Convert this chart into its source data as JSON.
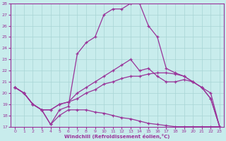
{
  "xlabel": "Windchill (Refroidissement éolien,°C)",
  "xlim": [
    -0.5,
    23.5
  ],
  "ylim": [
    17,
    28
  ],
  "xticks": [
    0,
    1,
    2,
    3,
    4,
    5,
    6,
    7,
    8,
    9,
    10,
    11,
    12,
    13,
    14,
    15,
    16,
    17,
    18,
    19,
    20,
    21,
    22,
    23
  ],
  "yticks": [
    17,
    18,
    19,
    20,
    21,
    22,
    23,
    24,
    25,
    26,
    27,
    28
  ],
  "background_color": "#c8ecec",
  "grid_color": "#a8d4d4",
  "line_color": "#993399",
  "curves": [
    {
      "x": [
        0,
        1,
        2,
        3,
        4,
        5,
        6,
        7,
        8,
        9,
        10,
        11,
        12,
        13,
        14,
        15,
        16,
        17,
        18,
        19,
        20,
        21,
        22,
        23
      ],
      "y": [
        20.5,
        20.0,
        19.0,
        18.5,
        17.2,
        18.5,
        18.8,
        23.5,
        24.5,
        25.0,
        27.0,
        27.5,
        27.5,
        28.0,
        28.0,
        26.0,
        25.0,
        22.2,
        21.8,
        21.5,
        21.0,
        20.5,
        20.0,
        17.0
      ]
    },
    {
      "x": [
        0,
        1,
        2,
        3,
        4,
        5,
        6,
        7,
        8,
        9,
        10,
        11,
        12,
        13,
        14,
        15,
        16,
        17,
        18,
        19,
        20,
        21,
        22,
        23
      ],
      "y": [
        20.5,
        20.0,
        19.0,
        18.5,
        18.5,
        19.0,
        19.2,
        20.0,
        20.5,
        21.0,
        21.5,
        22.0,
        22.5,
        23.0,
        22.0,
        22.2,
        21.5,
        21.0,
        21.0,
        21.2,
        21.0,
        20.5,
        19.5,
        17.0
      ]
    },
    {
      "x": [
        0,
        1,
        2,
        3,
        4,
        5,
        6,
        7,
        8,
        9,
        10,
        11,
        12,
        13,
        14,
        15,
        16,
        17,
        18,
        19,
        20,
        21,
        22,
        23
      ],
      "y": [
        20.5,
        20.0,
        19.0,
        18.5,
        18.5,
        19.0,
        19.2,
        19.5,
        20.0,
        20.3,
        20.8,
        21.0,
        21.3,
        21.5,
        21.5,
        21.7,
        21.8,
        21.8,
        21.7,
        21.5,
        21.0,
        20.5,
        19.5,
        17.0
      ]
    },
    {
      "x": [
        0,
        1,
        2,
        3,
        4,
        5,
        6,
        7,
        8,
        9,
        10,
        11,
        12,
        13,
        14,
        15,
        16,
        17,
        18,
        19,
        20,
        21,
        22,
        23
      ],
      "y": [
        20.5,
        20.0,
        19.0,
        18.5,
        17.2,
        18.0,
        18.5,
        18.5,
        18.5,
        18.3,
        18.2,
        18.0,
        17.8,
        17.7,
        17.5,
        17.3,
        17.2,
        17.1,
        17.0,
        17.0,
        17.0,
        17.0,
        17.0,
        17.0
      ]
    }
  ]
}
